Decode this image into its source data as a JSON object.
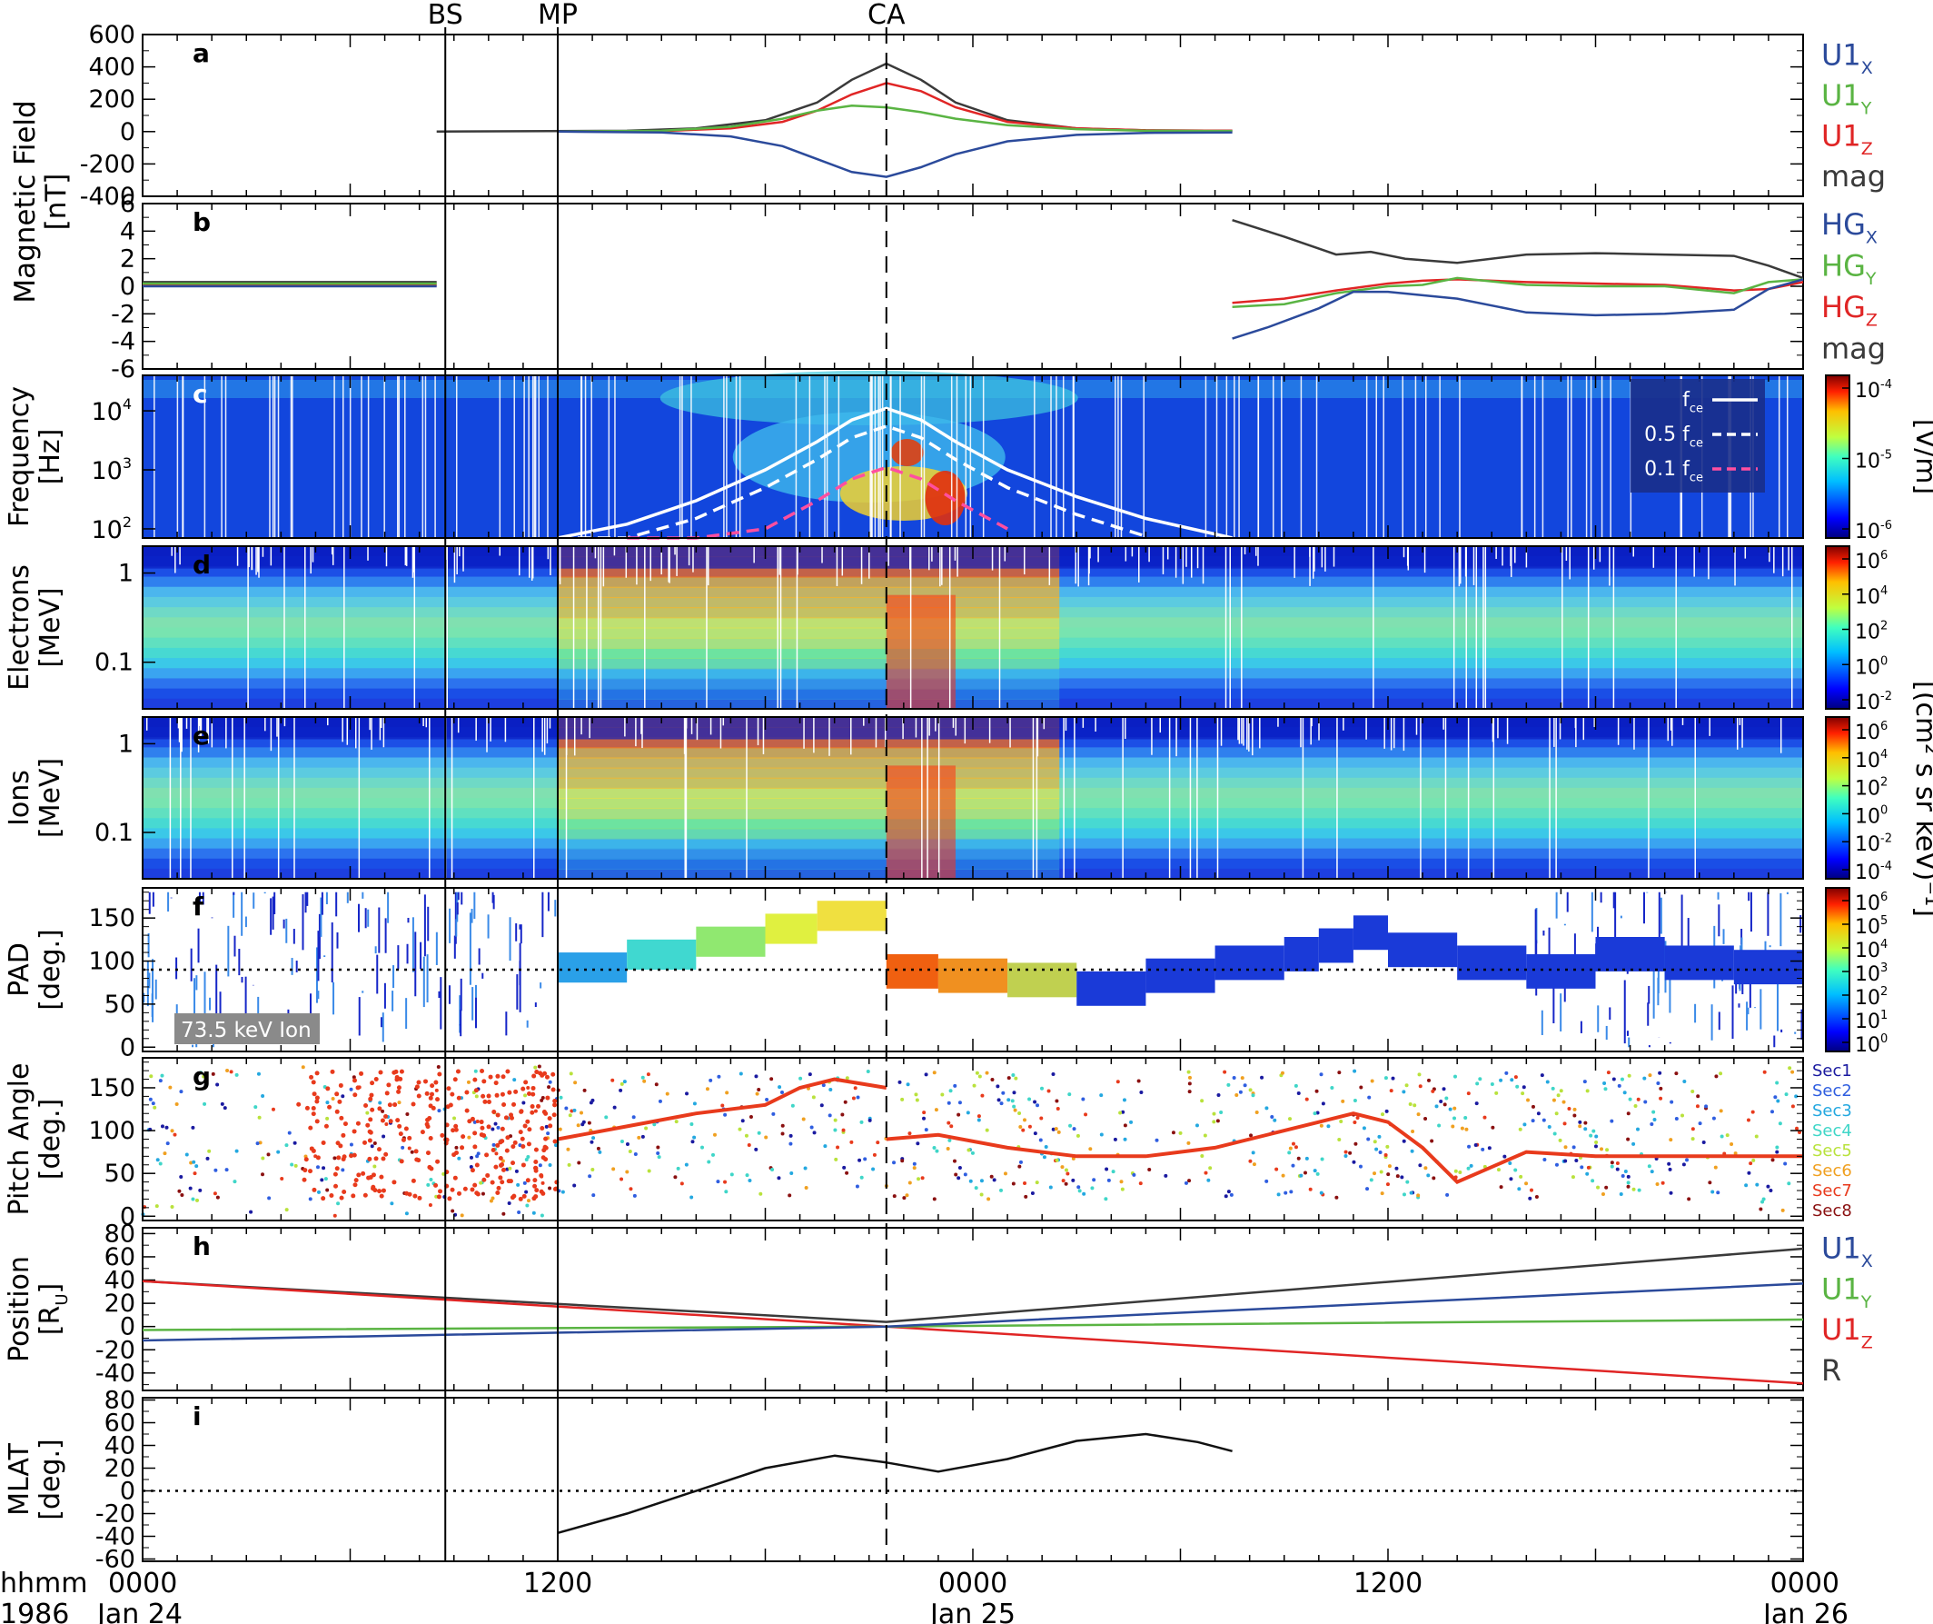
{
  "figure": {
    "events": [
      {
        "label": "BS",
        "x": 8.75
      },
      {
        "label": "MP",
        "x": 12
      },
      {
        "label": "CA",
        "x": 21.5
      }
    ],
    "time_axis": {
      "prefix1": "hhmm",
      "prefix2": "1986",
      "ticks": [
        {
          "x": 0,
          "hhmm": "0000",
          "date": "Jan 24"
        },
        {
          "x": 12,
          "hhmm": "1200",
          "date": ""
        },
        {
          "x": 24,
          "hhmm": "0000",
          "date": "Jan 25"
        },
        {
          "x": 36,
          "hhmm": "1200",
          "date": ""
        },
        {
          "x": 48,
          "hhmm": "0000",
          "date": "Jan 26"
        }
      ]
    },
    "colorbars": {
      "c": {
        "label": "[V/m]",
        "ticks": [
          {
            "base": "10",
            "exp": "-4"
          },
          {
            "base": "10",
            "exp": "-5"
          },
          {
            "base": "10",
            "exp": "-6"
          }
        ]
      },
      "de": {
        "label": "[(cm² s sr keV)⁻¹]",
        "d_ticks": [
          {
            "base": "10",
            "exp": "6"
          },
          {
            "base": "10",
            "exp": "4"
          },
          {
            "base": "10",
            "exp": "2"
          },
          {
            "base": "10",
            "exp": "0"
          },
          {
            "base": "10",
            "exp": "-2"
          }
        ],
        "e_ticks": [
          {
            "base": "10",
            "exp": "6"
          },
          {
            "base": "10",
            "exp": "4"
          },
          {
            "base": "10",
            "exp": "2"
          },
          {
            "base": "10",
            "exp": "0"
          },
          {
            "base": "10",
            "exp": "-2"
          },
          {
            "base": "10",
            "exp": "-4"
          }
        ]
      },
      "f": {
        "ticks": [
          {
            "base": "10",
            "exp": "6"
          },
          {
            "base": "10",
            "exp": "5"
          },
          {
            "base": "10",
            "exp": "4"
          },
          {
            "base": "10",
            "exp": "3"
          },
          {
            "base": "10",
            "exp": "2"
          },
          {
            "base": "10",
            "exp": "1"
          },
          {
            "base": "10",
            "exp": "0"
          }
        ]
      }
    },
    "shared_labels": {
      "magnetic_field": "Magnetic Field",
      "nT": "[nT]"
    }
  },
  "chart_data": [
    {
      "panel": "a",
      "type": "line",
      "ylim": [
        -400,
        600
      ],
      "yticks": [
        "600",
        "400",
        "200",
        "0",
        "-200",
        "-400"
      ],
      "legend": [
        {
          "base": "U1",
          "sub": "X",
          "color": "#2b4a9b"
        },
        {
          "base": "U1",
          "sub": "Y",
          "color": "#5ab443"
        },
        {
          "base": "U1",
          "sub": "Z",
          "color": "#e02525"
        },
        {
          "base": "mag",
          "sub": "",
          "color": "#3a3a3a"
        }
      ],
      "series": [
        {
          "color": "#3a3a3a",
          "x": [
            8.5,
            14,
            16,
            18,
            19.5,
            20.5,
            21.5,
            22.5,
            23.5,
            25,
            27,
            29,
            31.5
          ],
          "y": [
            0,
            5,
            20,
            70,
            180,
            320,
            420,
            320,
            180,
            70,
            20,
            8,
            5
          ]
        },
        {
          "color": "#e02525",
          "x": [
            12,
            15,
            17,
            18.5,
            19.5,
            20.5,
            21.5,
            22.5,
            23.5,
            25,
            27,
            29,
            31.5
          ],
          "y": [
            0,
            3,
            20,
            60,
            130,
            230,
            300,
            250,
            150,
            60,
            20,
            8,
            5
          ]
        },
        {
          "color": "#5ab443",
          "x": [
            12,
            15,
            17,
            18.5,
            19.5,
            20.5,
            21.5,
            22.5,
            23.5,
            25,
            27,
            29,
            31.5
          ],
          "y": [
            0,
            5,
            30,
            80,
            130,
            160,
            150,
            120,
            80,
            40,
            15,
            5,
            3
          ]
        },
        {
          "color": "#2b4a9b",
          "x": [
            12,
            15,
            17,
            18.5,
            19.5,
            20.5,
            21.5,
            22.5,
            23.5,
            25,
            27,
            29,
            31.5
          ],
          "y": [
            0,
            -5,
            -30,
            -90,
            -170,
            -250,
            -280,
            -220,
            -140,
            -60,
            -20,
            -8,
            -5
          ]
        }
      ]
    },
    {
      "panel": "b",
      "type": "line",
      "ylim": [
        -6,
        6
      ],
      "yticks": [
        "6",
        "4",
        "2",
        "0",
        "-2",
        "-4",
        "-6"
      ],
      "legend": [
        {
          "base": "HG",
          "sub": "X",
          "color": "#2b4a9b"
        },
        {
          "base": "HG",
          "sub": "Y",
          "color": "#5ab443"
        },
        {
          "base": "HG",
          "sub": "Z",
          "color": "#e02525"
        },
        {
          "base": "mag",
          "sub": "",
          "color": "#3a3a3a"
        }
      ],
      "series": [
        {
          "color": "#3a3a3a",
          "x": [
            0,
            8.5,
            null,
            31.5,
            33,
            34.5,
            35.5,
            36.5,
            38,
            40,
            42,
            44,
            46,
            47,
            48
          ],
          "y": [
            0.3,
            0.3,
            null,
            4.8,
            3.6,
            2.3,
            2.5,
            2.0,
            1.7,
            2.3,
            2.4,
            2.3,
            2.2,
            1.5,
            0.6
          ]
        },
        {
          "color": "#e02525",
          "x": [
            0,
            8.5,
            null,
            31.5,
            33,
            34.5,
            36,
            37,
            38,
            40,
            42,
            44,
            46,
            47,
            48
          ],
          "y": [
            0.1,
            0.1,
            null,
            -1.2,
            -0.9,
            -0.3,
            0.2,
            0.4,
            0.5,
            0.3,
            0.2,
            0.1,
            -0.3,
            -0.2,
            0.3
          ]
        },
        {
          "color": "#5ab443",
          "x": [
            0,
            8.5,
            null,
            31.5,
            33,
            34.5,
            36,
            37,
            38,
            40,
            42,
            44,
            46,
            47,
            48
          ],
          "y": [
            0.2,
            0.2,
            null,
            -1.5,
            -1.3,
            -0.5,
            0.0,
            0.1,
            0.6,
            0.1,
            0.0,
            0.0,
            -0.5,
            0.3,
            0.5
          ]
        },
        {
          "color": "#2b4a9b",
          "x": [
            0,
            8.5,
            null,
            31.5,
            32.5,
            34,
            35,
            36,
            38,
            40,
            42,
            44,
            46,
            47,
            48
          ],
          "y": [
            0.0,
            0.0,
            null,
            -3.8,
            -3.0,
            -1.6,
            -0.4,
            -0.4,
            -0.9,
            -1.9,
            -2.1,
            -2.0,
            -1.7,
            -0.2,
            0.5
          ]
        }
      ]
    },
    {
      "panel": "c",
      "type": "heatmap",
      "scale": "log",
      "ylim": [
        70,
        40000
      ],
      "yticks": [
        {
          "base": "10",
          "exp": "4"
        },
        {
          "base": "10",
          "exp": "3"
        },
        {
          "base": "10",
          "exp": "2"
        }
      ],
      "lines": [
        {
          "label_base": "f",
          "label_sub": "ce",
          "style": "solid",
          "color": "#ffffff",
          "x": [
            12,
            14,
            16,
            18,
            19.5,
            20.5,
            21.5,
            22.5,
            23.5,
            25,
            27,
            29,
            31.5
          ],
          "y": [
            70,
            120,
            300,
            1000,
            3000,
            7000,
            11000,
            7000,
            3000,
            1000,
            350,
            150,
            70
          ]
        },
        {
          "label_base": "0.5 f",
          "label_sub": "ce",
          "style": "dash",
          "color": "#ffffff",
          "x": [
            12,
            14,
            16,
            18,
            19.5,
            20.5,
            21.5,
            22.5,
            23.5,
            25,
            27,
            29
          ],
          "y": [
            35,
            60,
            150,
            500,
            1500,
            3500,
            5500,
            3500,
            1500,
            500,
            175,
            75
          ]
        },
        {
          "label_base": "0.1 f",
          "label_sub": "ce",
          "style": "dash",
          "color": "#ff4fa0",
          "x": [
            14,
            16,
            18,
            19.5,
            20.5,
            21.5,
            22.5,
            23.5,
            25
          ],
          "y": [
            12,
            30,
            100,
            300,
            700,
            1100,
            700,
            300,
            100
          ]
        }
      ]
    },
    {
      "panel": "d",
      "type": "heatmap",
      "scale": "log",
      "ylim": [
        0.03,
        2
      ],
      "yticks": [
        "1",
        "0.1"
      ]
    },
    {
      "panel": "e",
      "type": "heatmap",
      "scale": "log",
      "ylim": [
        0.03,
        2
      ],
      "yticks": [
        "1",
        "0.1"
      ]
    },
    {
      "panel": "f",
      "type": "scatter",
      "ylim": [
        -5,
        185
      ],
      "yticks": [
        "150",
        "100",
        "50",
        "0"
      ],
      "annotation": "73.5 keV Ion",
      "reference_line": 90,
      "series": [
        {
          "x": [
            12,
            14,
            16,
            18,
            19.5,
            21.5
          ],
          "y": [
            95,
            110,
            125,
            140,
            155,
            165
          ]
        },
        {
          "x": [
            21.5,
            23,
            25,
            27,
            29,
            31,
            33,
            34,
            35,
            36,
            38,
            40,
            42,
            44,
            46,
            48
          ],
          "y": [
            90,
            85,
            80,
            70,
            85,
            100,
            110,
            120,
            135,
            115,
            100,
            90,
            110,
            100,
            95,
            100
          ]
        }
      ]
    },
    {
      "panel": "g",
      "type": "scatter",
      "ylim": [
        -5,
        185
      ],
      "yticks": [
        "150",
        "100",
        "50",
        "0"
      ],
      "legend": [
        {
          "label": "Sec1",
          "color": "#1a1aa0"
        },
        {
          "label": "Sec2",
          "color": "#2f5ee0"
        },
        {
          "label": "Sec3",
          "color": "#24a8e0"
        },
        {
          "label": "Sec4",
          "color": "#3fd6c8"
        },
        {
          "label": "Sec5",
          "color": "#b9e23c"
        },
        {
          "label": "Sec6",
          "color": "#f0a020"
        },
        {
          "label": "Sec7",
          "color": "#e83a1c"
        },
        {
          "label": "Sec8",
          "color": "#8a1010"
        }
      ],
      "series": [
        {
          "name": "Sec7",
          "x": [
            12,
            14,
            16,
            18,
            19,
            20,
            21.5,
            null,
            21.5,
            23,
            25,
            27,
            29,
            31,
            33,
            34,
            35,
            36,
            37,
            38,
            40,
            42,
            44,
            46,
            48
          ],
          "y": [
            90,
            105,
            120,
            130,
            150,
            160,
            150,
            null,
            90,
            95,
            80,
            70,
            70,
            80,
            100,
            110,
            120,
            110,
            80,
            40,
            75,
            70,
            70,
            70,
            70
          ]
        }
      ]
    },
    {
      "panel": "h",
      "type": "line",
      "ylim": [
        -55,
        85
      ],
      "yticks": [
        "80",
        "60",
        "40",
        "20",
        "0",
        "-20",
        "-40"
      ],
      "legend": [
        {
          "base": "U1",
          "sub": "X",
          "color": "#2b4a9b"
        },
        {
          "base": "U1",
          "sub": "Y",
          "color": "#5ab443"
        },
        {
          "base": "U1",
          "sub": "Z",
          "color": "#e02525"
        },
        {
          "base": "R",
          "sub": "",
          "color": "#3a3a3a"
        }
      ],
      "series": [
        {
          "color": "#3a3a3a",
          "x": [
            0,
            21.5,
            48
          ],
          "y": [
            39,
            4,
            67
          ]
        },
        {
          "color": "#e02525",
          "x": [
            0,
            21.5,
            48
          ],
          "y": [
            39,
            0,
            -49
          ]
        },
        {
          "color": "#5ab443",
          "x": [
            0,
            21.5,
            48
          ],
          "y": [
            -3,
            0,
            6
          ]
        },
        {
          "color": "#2b4a9b",
          "x": [
            0,
            21.5,
            48
          ],
          "y": [
            -12,
            0,
            37
          ]
        }
      ]
    },
    {
      "panel": "i",
      "type": "line",
      "ylim": [
        -62,
        82
      ],
      "yticks": [
        "80",
        "60",
        "40",
        "20",
        "0",
        "-20",
        "-40",
        "-60"
      ],
      "reference_line": 0,
      "series": [
        {
          "color": "#111111",
          "x": [
            12,
            14,
            16,
            18,
            20,
            21.5,
            23,
            25,
            27,
            29,
            30.5,
            31.5
          ],
          "y": [
            -37,
            -20,
            0,
            20,
            31,
            25,
            17,
            28,
            44,
            50,
            43,
            35
          ]
        }
      ]
    }
  ]
}
